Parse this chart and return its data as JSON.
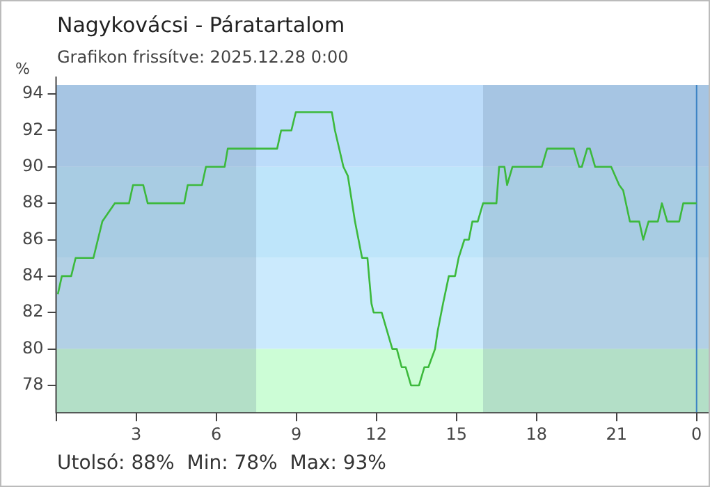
{
  "chart_data": {
    "type": "line",
    "title": "Nagykovácsi - Páratartalom",
    "subtitle": "Grafikon frissítve: 2025.12.28 0:00",
    "ylabel": "%",
    "x": [
      "2025-12-27T00:04",
      "2025-12-27T00:13",
      "2025-12-27T00:34",
      "2025-12-27T00:44",
      "2025-12-27T01:24",
      "2025-12-27T01:34",
      "2025-12-27T01:44",
      "2025-12-27T02:12",
      "2025-12-27T02:44",
      "2025-12-27T02:53",
      "2025-12-27T03:16",
      "2025-12-27T03:26",
      "2025-12-27T04:48",
      "2025-12-27T04:56",
      "2025-12-27T05:28",
      "2025-12-27T05:37",
      "2025-12-27T06:19",
      "2025-12-27T06:26",
      "2025-12-27T08:17",
      "2025-12-27T08:26",
      "2025-12-27T08:49",
      "2025-12-27T08:59",
      "2025-12-27T10:20",
      "2025-12-27T10:27",
      "2025-12-27T10:46",
      "2025-12-27T10:56",
      "2025-12-27T11:12",
      "2025-12-27T11:20",
      "2025-12-27T11:28",
      "2025-12-27T11:40",
      "2025-12-27T11:49",
      "2025-12-27T11:54",
      "2025-12-27T12:12",
      "2025-12-27T12:24",
      "2025-12-27T12:36",
      "2025-12-27T12:46",
      "2025-12-27T12:57",
      "2025-12-27T13:06",
      "2025-12-27T13:18",
      "2025-12-27T13:36",
      "2025-12-27T13:48",
      "2025-12-27T13:57",
      "2025-12-27T14:12",
      "2025-12-27T14:18",
      "2025-12-27T14:30",
      "2025-12-27T14:43",
      "2025-12-27T14:57",
      "2025-12-27T15:05",
      "2025-12-27T15:18",
      "2025-12-27T15:28",
      "2025-12-27T15:36",
      "2025-12-27T15:48",
      "2025-12-27T16:00",
      "2025-12-27T16:30",
      "2025-12-27T16:36",
      "2025-12-27T16:48",
      "2025-12-27T16:54",
      "2025-12-27T17:06",
      "2025-12-27T18:12",
      "2025-12-27T18:24",
      "2025-12-27T19:24",
      "2025-12-27T19:36",
      "2025-12-27T19:42",
      "2025-12-27T19:54",
      "2025-12-27T20:00",
      "2025-12-27T20:12",
      "2025-12-27T20:48",
      "2025-12-27T21:06",
      "2025-12-27T21:15",
      "2025-12-27T21:30",
      "2025-12-27T21:51",
      "2025-12-27T22:00",
      "2025-12-27T22:12",
      "2025-12-27T22:33",
      "2025-12-27T22:42",
      "2025-12-27T22:54",
      "2025-12-27T23:21",
      "2025-12-27T23:30",
      "2025-12-28T00:00"
    ],
    "series": [
      {
        "color": "#3cb93c",
        "values": [
          83,
          84,
          84,
          85,
          85,
          86,
          87,
          88,
          88,
          89,
          89,
          88,
          88,
          89,
          89,
          90,
          90,
          91,
          91,
          92,
          92,
          93,
          93,
          92,
          90,
          89.5,
          87,
          86,
          85,
          85,
          82.5,
          82,
          82,
          81,
          80,
          80,
          79,
          79,
          78,
          78,
          79,
          79,
          80,
          81,
          82.5,
          84,
          84,
          85,
          86,
          86,
          87,
          87,
          88,
          88,
          90,
          90,
          89,
          90,
          90,
          91,
          91,
          90,
          90,
          91,
          91,
          90,
          90,
          89,
          88.7,
          87,
          87,
          86,
          87,
          87,
          88,
          87,
          87,
          88,
          88
        ]
      }
    ],
    "xlim": [
      "2025-12-27T00:00",
      "2025-12-28T00:27"
    ],
    "xticks": [
      {
        "value": "2025-12-27T00:00",
        "label": null
      },
      {
        "value": "2025-12-27T03:00",
        "label": "3"
      },
      {
        "value": "2025-12-27T06:00",
        "label": "6"
      },
      {
        "value": "2025-12-27T09:00",
        "label": "9"
      },
      {
        "value": "2025-12-27T12:00",
        "label": "12"
      },
      {
        "value": "2025-12-27T15:00",
        "label": "15"
      },
      {
        "value": "2025-12-27T18:00",
        "label": "18"
      },
      {
        "value": "2025-12-27T21:00",
        "label": "21"
      },
      {
        "value": "2025-12-28T00:00",
        "label": "0"
      }
    ],
    "ylim": [
      76.5,
      94.5
    ],
    "yticks": [
      78,
      80,
      82,
      84,
      86,
      88,
      90,
      92,
      94
    ],
    "grid": false,
    "legend": false,
    "marker": "none",
    "line_style": "solid",
    "bands": [
      {
        "axis": "y",
        "from": 90,
        "to": 94.5,
        "color": "#bcdcfa"
      },
      {
        "axis": "y",
        "from": 85,
        "to": 90,
        "color": "#bee5fa"
      },
      {
        "axis": "y",
        "from": 80,
        "to": 85,
        "color": "#cbeafd"
      },
      {
        "axis": "y",
        "from": 76.5,
        "to": 80,
        "color": "#ccfdd6"
      },
      {
        "axis": "x",
        "from": "2025-12-27T00:00",
        "to": "2025-12-27T07:30",
        "color": "#5a7890"
      },
      {
        "axis": "x",
        "from": "2025-12-27T16:00",
        "to": "2025-12-28T00:27",
        "color": "#5a7890"
      }
    ],
    "ref_lines": [
      {
        "axis": "x",
        "value": "2025-12-28T00:00",
        "color": "#3b82c4"
      }
    ],
    "annotations": [
      "Utolsó: 88%  Min: 78%  Max: 93%"
    ]
  }
}
